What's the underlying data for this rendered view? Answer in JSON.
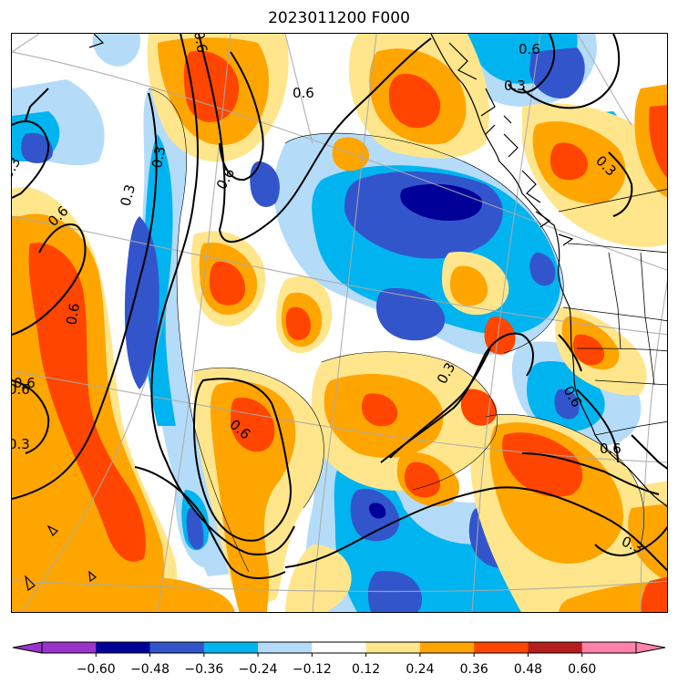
{
  "title": "2023011200 F000",
  "colors": {
    "lt_neg060": "#9933cc",
    "neg060_neg048": "#000099",
    "neg048_neg036": "#3355cc",
    "neg036_neg024": "#00b4f0",
    "neg024_neg012": "#b4dcf8",
    "neg012_012": "#ffffff",
    "p012_p024": "#ffe68c",
    "p024_p036": "#ffa500",
    "p036_p048": "#ff4500",
    "p048_p060": "#b41e1e",
    "gt_p060": "#ff82aa"
  },
  "colorbar": {
    "ticks": [
      "−0.60",
      "−0.48",
      "−0.36",
      "−0.24",
      "−0.12",
      "0.12",
      "0.24",
      "0.36",
      "0.48",
      "0.60"
    ]
  },
  "contour_labels": [
    "0.6",
    "0.6",
    "0.3",
    "0.3",
    "0.6",
    "0.6",
    "0.3",
    "0.6",
    "0.3",
    "0.3",
    "0.6",
    "0.3",
    "0.6",
    "0.6",
    "0.3",
    "0.6",
    "0.6",
    "0.3",
    "0.6"
  ]
}
